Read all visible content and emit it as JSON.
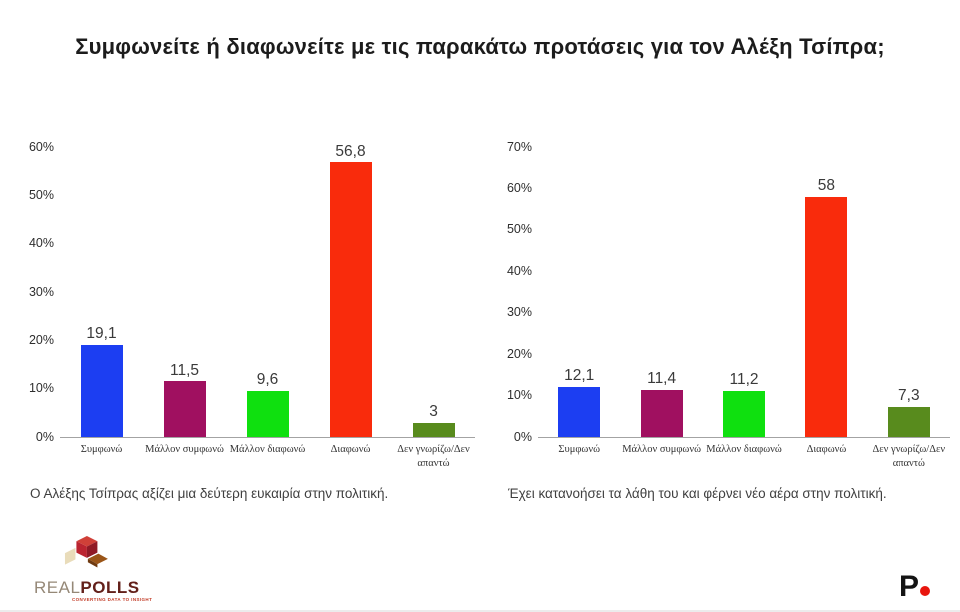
{
  "title": "Συμφωνείτε ή διαφωνείτε με τις παρακάτω προτάσεις για τον Αλέξη Τσίπρα;",
  "colors": {
    "bar_agree": "#1c3ef2",
    "bar_rather_agree": "#a01060",
    "bar_rather_disagree": "#0fe00f",
    "bar_disagree": "#f92b0c",
    "bar_dont_know": "#588b1d",
    "axis_line": "#a3a3a3",
    "text": "#3a3a3a"
  },
  "chart_data": [
    {
      "type": "bar",
      "caption": "Ο Αλέξης Τσίπρας αξίζει μια δεύτερη ευκαιρία στην πολιτική.",
      "categories": [
        "Συμφωνώ",
        "Μάλλον συμφωνώ",
        "Μάλλον διαφωνώ",
        "Διαφωνώ",
        "Δεν γνωρίζω/Δεν απαντώ"
      ],
      "values": [
        19.1,
        11.5,
        9.6,
        56.8,
        3
      ],
      "value_labels": [
        "19,1",
        "11,5",
        "9,6",
        "56,8",
        "3"
      ],
      "bar_colors": [
        "#1c3ef2",
        "#a01060",
        "#0fe00f",
        "#f92b0c",
        "#588b1d"
      ],
      "xlabel": "",
      "ylabel": "",
      "ylim": [
        0,
        60
      ],
      "ytick_step": 10,
      "ytick_suffix": "%",
      "grid": false,
      "legend": false
    },
    {
      "type": "bar",
      "caption": "Έχει κατανοήσει τα λάθη του και φέρνει νέο αέρα στην πολιτική.",
      "categories": [
        "Συμφωνώ",
        "Μάλλον συμφωνώ",
        "Μάλλον διαφωνώ",
        "Διαφωνώ",
        "Δεν γνωρίζω/Δεν απαντώ"
      ],
      "values": [
        12.1,
        11.4,
        11.2,
        58,
        7.3
      ],
      "value_labels": [
        "12,1",
        "11,4",
        "11,2",
        "58",
        "7,3"
      ],
      "bar_colors": [
        "#1c3ef2",
        "#a01060",
        "#0fe00f",
        "#f92b0c",
        "#588b1d"
      ],
      "xlabel": "",
      "ylabel": "",
      "ylim": [
        0,
        70
      ],
      "ytick_step": 10,
      "ytick_suffix": "%",
      "grid": false,
      "legend": false
    }
  ],
  "footer": {
    "realpolls": {
      "real": "REAL",
      "polls": "POLLS",
      "tagline": "CONVERTING DATA TO INSIGHT"
    },
    "p_logo": {
      "letter": "P"
    }
  }
}
